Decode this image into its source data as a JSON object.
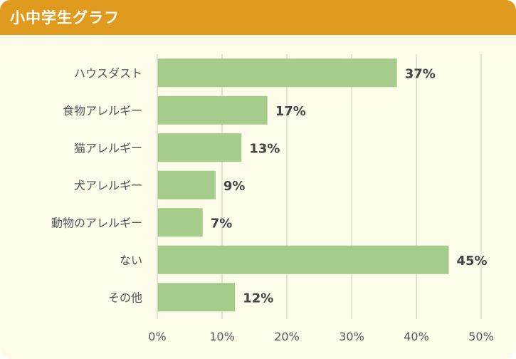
{
  "header": {
    "title": "小中学生グラフ"
  },
  "colors": {
    "header": "#e09b1f",
    "background": "#fdfbea",
    "bar": "#a5cc8b",
    "grid": "#dcdcd0"
  },
  "chart_data": {
    "type": "bar",
    "orientation": "horizontal",
    "title": "小中学生グラフ",
    "categories": [
      "ハウスダスト",
      "食物アレルギー",
      "猫アレルギー",
      "犬アレルギー",
      "動物のアレルギー",
      "ない",
      "その他"
    ],
    "values": [
      37,
      17,
      13,
      9,
      7,
      45,
      12
    ],
    "data_labels": [
      "37%",
      "17%",
      "13%",
      "9%",
      "7%",
      "45%",
      "12%"
    ],
    "xlim": [
      0,
      50
    ],
    "x_ticks": [
      0,
      10,
      20,
      30,
      40,
      50
    ],
    "x_tick_labels": [
      "0%",
      "10%",
      "20%",
      "30%",
      "40%",
      "50%"
    ],
    "grid": true,
    "legend": "none"
  }
}
